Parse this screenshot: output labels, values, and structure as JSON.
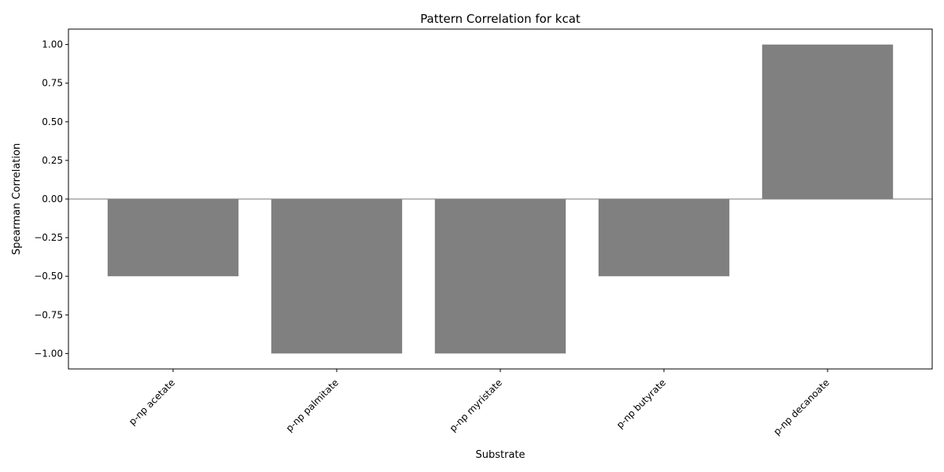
{
  "chart_data": {
    "type": "bar",
    "title": "Pattern Correlation for kcat",
    "xlabel": "Substrate",
    "ylabel": "Spearman Correlation",
    "categories": [
      "p-np acetate",
      "p-np palmitate",
      "p-np myristate",
      "p-np butyrate",
      "p-np decanoate"
    ],
    "values": [
      -0.5,
      -1.0,
      -1.0,
      -0.5,
      1.0
    ],
    "ylim": [
      -1.1,
      1.1
    ],
    "yticks": [
      -1.0,
      -0.75,
      -0.5,
      -0.25,
      0.0,
      0.25,
      0.5,
      0.75,
      1.0
    ],
    "ytick_labels": [
      "−1.00",
      "−0.75",
      "−0.50",
      "−0.25",
      "0.00",
      "0.25",
      "0.50",
      "0.75",
      "1.00"
    ],
    "grid": false,
    "zero_line": true,
    "bar_color": "#808080",
    "zero_line_color": "#a6a6a6"
  }
}
